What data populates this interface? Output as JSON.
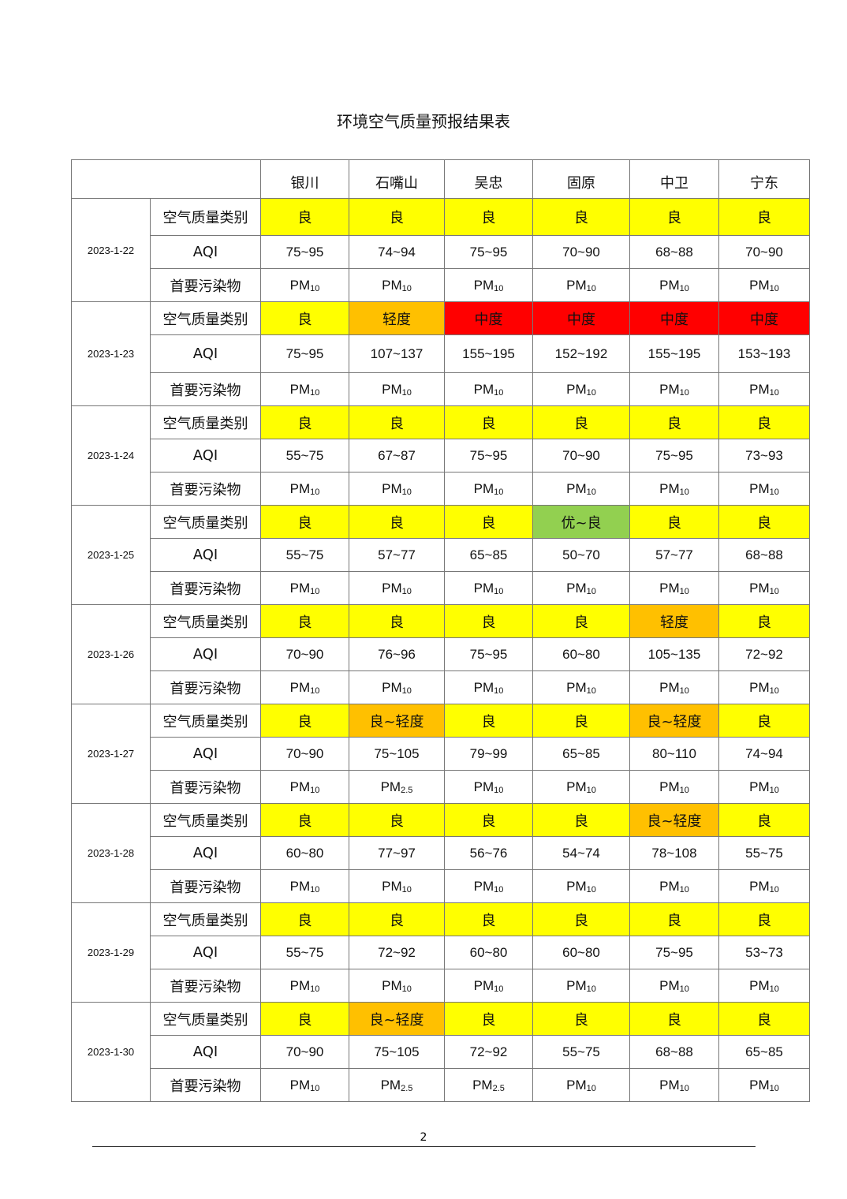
{
  "title": "环境空气质量预报结果表",
  "row_labels": {
    "category": "空气质量类别",
    "aqi": "AQI",
    "pollutant": "首要污染物"
  },
  "cities": [
    "银川",
    "石嘴山",
    "吴忠",
    "固原",
    "中卫",
    "宁东"
  ],
  "category_colors": {
    "良": "#FFFF00",
    "轻度": "#FFC000",
    "良~轻度": "#FFC000",
    "中度": "#FF0000",
    "优~良": "#92D050"
  },
  "days": [
    {
      "date": "2023-1-22",
      "category": [
        "良",
        "良",
        "良",
        "良",
        "良",
        "良"
      ],
      "aqi": [
        "75~95",
        "74~94",
        "75~95",
        "70~90",
        "68~88",
        "70~90"
      ],
      "pollutant": [
        "PM10",
        "PM10",
        "PM10",
        "PM10",
        "PM10",
        "PM10"
      ]
    },
    {
      "date": "2023-1-23",
      "category": [
        "良",
        "轻度",
        "中度",
        "中度",
        "中度",
        "中度"
      ],
      "aqi": [
        "75~95",
        "107~137",
        "155~195",
        "152~192",
        "155~195",
        "153~193"
      ],
      "pollutant": [
        "PM10",
        "PM10",
        "PM10",
        "PM10",
        "PM10",
        "PM10"
      ]
    },
    {
      "date": "2023-1-24",
      "category": [
        "良",
        "良",
        "良",
        "良",
        "良",
        "良"
      ],
      "aqi": [
        "55~75",
        "67~87",
        "75~95",
        "70~90",
        "75~95",
        "73~93"
      ],
      "pollutant": [
        "PM10",
        "PM10",
        "PM10",
        "PM10",
        "PM10",
        "PM10"
      ]
    },
    {
      "date": "2023-1-25",
      "category": [
        "良",
        "良",
        "良",
        "优~良",
        "良",
        "良"
      ],
      "aqi": [
        "55~75",
        "57~77",
        "65~85",
        "50~70",
        "57~77",
        "68~88"
      ],
      "pollutant": [
        "PM10",
        "PM10",
        "PM10",
        "PM10",
        "PM10",
        "PM10"
      ]
    },
    {
      "date": "2023-1-26",
      "category": [
        "良",
        "良",
        "良",
        "良",
        "轻度",
        "良"
      ],
      "aqi": [
        "70~90",
        "76~96",
        "75~95",
        "60~80",
        "105~135",
        "72~92"
      ],
      "pollutant": [
        "PM10",
        "PM10",
        "PM10",
        "PM10",
        "PM10",
        "PM10"
      ]
    },
    {
      "date": "2023-1-27",
      "category": [
        "良",
        "良~轻度",
        "良",
        "良",
        "良~轻度",
        "良"
      ],
      "aqi": [
        "70~90",
        "75~105",
        "79~99",
        "65~85",
        "80~110",
        "74~94"
      ],
      "pollutant": [
        "PM10",
        "PM2.5",
        "PM10",
        "PM10",
        "PM10",
        "PM10"
      ]
    },
    {
      "date": "2023-1-28",
      "category": [
        "良",
        "良",
        "良",
        "良",
        "良~轻度",
        "良"
      ],
      "aqi": [
        "60~80",
        "77~97",
        "56~76",
        "54~74",
        "78~108",
        "55~75"
      ],
      "pollutant": [
        "PM10",
        "PM10",
        "PM10",
        "PM10",
        "PM10",
        "PM10"
      ]
    },
    {
      "date": "2023-1-29",
      "category": [
        "良",
        "良",
        "良",
        "良",
        "良",
        "良"
      ],
      "aqi": [
        "55~75",
        "72~92",
        "60~80",
        "60~80",
        "75~95",
        "53~73"
      ],
      "pollutant": [
        "PM10",
        "PM10",
        "PM10",
        "PM10",
        "PM10",
        "PM10"
      ]
    },
    {
      "date": "2023-1-30",
      "category": [
        "良",
        "良~轻度",
        "良",
        "良",
        "良",
        "良"
      ],
      "aqi": [
        "70~90",
        "75~105",
        "72~92",
        "55~75",
        "68~88",
        "65~85"
      ],
      "pollutant": [
        "PM10",
        "PM2.5",
        "PM2.5",
        "PM10",
        "PM10",
        "PM10"
      ]
    }
  ],
  "page_number": "2"
}
